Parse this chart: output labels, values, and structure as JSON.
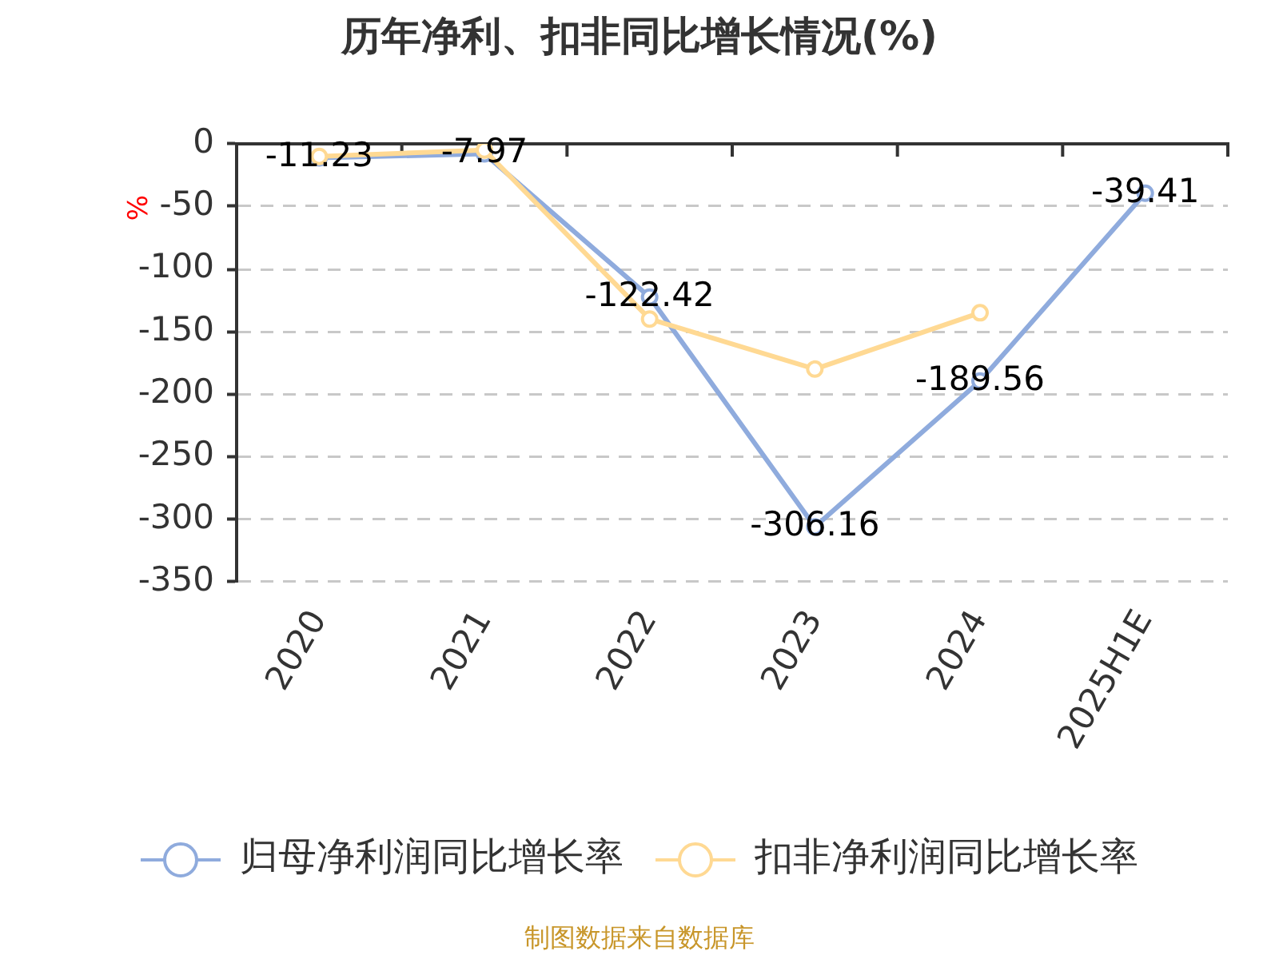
{
  "chart_data": {
    "type": "line",
    "title": "历年净利、扣非同比增长情况(%)",
    "ylabel": "%",
    "categories": [
      "2020",
      "2021",
      "2022",
      "2023",
      "2024",
      "2025H1E"
    ],
    "series": [
      {
        "name": "归母净利润同比增长率",
        "color": "#8fabdd",
        "values": [
          -11.23,
          -7.97,
          -122.42,
          -306.16,
          -189.56,
          -39.41
        ],
        "value_labels": [
          "-11.23",
          "-7.97",
          "-122.42",
          "-306.16",
          "-189.56",
          "-39.41"
        ]
      },
      {
        "name": "扣非净利润同比增长率",
        "color": "#ffd993",
        "values": [
          -10,
          -5,
          -140,
          -180,
          -135,
          null
        ]
      }
    ],
    "ylim": [
      -350,
      0
    ],
    "yticks": [
      -350,
      -300,
      -250,
      -200,
      -150,
      -100,
      -50,
      0
    ],
    "grid": "y",
    "legend": "bottom",
    "marker": "circle",
    "line_style": "solid",
    "annotations": [
      "制图数据来自数据库"
    ]
  }
}
